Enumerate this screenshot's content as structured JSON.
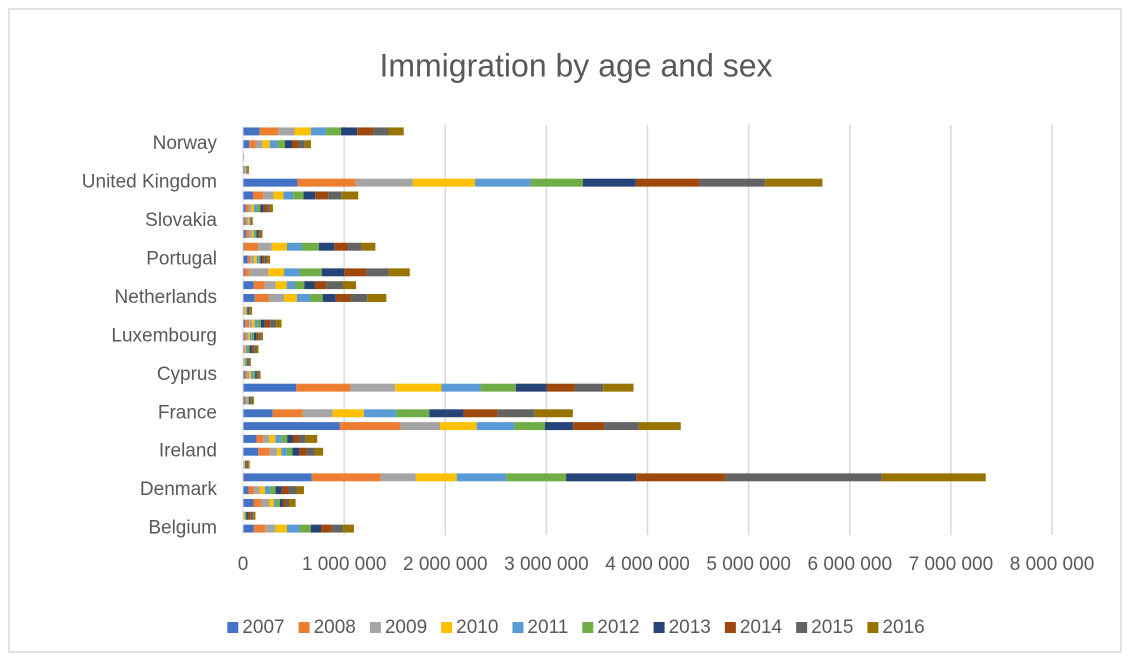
{
  "chart_data": {
    "type": "stacked-bar-horizontal",
    "title": "Immigration by age and sex",
    "categories": [
      "Belgium",
      null,
      null,
      "Denmark",
      null,
      null,
      "Ireland",
      null,
      null,
      "France",
      null,
      null,
      "Cyprus",
      null,
      null,
      "Luxembourg",
      null,
      null,
      "Netherlands",
      null,
      null,
      "Portugal",
      null,
      null,
      "Slovakia",
      null,
      null,
      "United Kingdom",
      null,
      null,
      "Norway",
      null
    ],
    "series": [
      {
        "name": "2007",
        "color": "#4472c4",
        "values": [
          107000,
          3000,
          104000,
          54000,
          680000,
          4000,
          151000,
          133000,
          958000,
          294000,
          15000,
          527000,
          19000,
          7000,
          9000,
          16000,
          23000,
          7000,
          116000,
          106000,
          15000,
          46000,
          10000,
          29000,
          17000,
          26000,
          99000,
          540000,
          12000,
          1000,
          61000,
          165000
        ]
      },
      {
        "name": "2008",
        "color": "#ed7d31",
        "values": [
          112000,
          3000,
          78000,
          57000,
          682000,
          4000,
          114000,
          67000,
          599000,
          297000,
          15000,
          535000,
          22000,
          4000,
          9000,
          18000,
          38000,
          9000,
          143000,
          110000,
          47000,
          30000,
          139000,
          31000,
          17000,
          30000,
          101000,
          575000,
          10000,
          1000,
          66000,
          184000
        ]
      },
      {
        "name": "2009",
        "color": "#a5a5a5",
        "values": [
          102000,
          4000,
          76000,
          52000,
          347000,
          4000,
          73000,
          59000,
          392000,
          297000,
          8000,
          443000,
          19000,
          4000,
          6000,
          16000,
          28000,
          7000,
          147000,
          108000,
          189000,
          33000,
          136000,
          30000,
          15000,
          27000,
          102000,
          565000,
          3000,
          1000,
          65000,
          160000
        ]
      },
      {
        "name": "2010",
        "color": "#ffc000",
        "values": [
          114000,
          4000,
          49000,
          53000,
          404000,
          3000,
          41000,
          60000,
          361000,
          307000,
          5000,
          458000,
          20000,
          5000,
          5000,
          17000,
          26000,
          8000,
          127000,
          108000,
          155000,
          27000,
          150000,
          15000,
          13000,
          26000,
          98000,
          615000,
          3000,
          1000,
          73000,
          162000
        ]
      },
      {
        "name": "2011",
        "color": "#5b9bd5",
        "values": [
          124000,
          3000,
          23000,
          52000,
          490000,
          3000,
          53000,
          60000,
          372000,
          320000,
          9000,
          385000,
          23000,
          10000,
          16000,
          20000,
          28000,
          5000,
          130000,
          82000,
          157000,
          20000,
          148000,
          14000,
          5000,
          30000,
          96000,
          550000,
          3000,
          1000,
          79000,
          149000
        ]
      },
      {
        "name": "2012",
        "color": "#70ad47",
        "values": [
          111000,
          14000,
          35000,
          54000,
          592000,
          3000,
          57000,
          58000,
          304000,
          327000,
          9000,
          350000,
          17000,
          13000,
          20000,
          21000,
          34000,
          8000,
          125000,
          92000,
          217000,
          15000,
          167000,
          15000,
          5000,
          31000,
          103000,
          515000,
          5000,
          1000,
          71000,
          150000
        ]
      },
      {
        "name": "2013",
        "color": "#264478",
        "values": [
          102000,
          18000,
          30000,
          60000,
          693000,
          4000,
          65000,
          57000,
          280000,
          338000,
          10000,
          307000,
          13000,
          8000,
          22000,
          21000,
          39000,
          11000,
          129000,
          101000,
          220000,
          18000,
          153000,
          14000,
          5000,
          32000,
          116000,
          525000,
          6000,
          1000,
          69000,
          160000
        ]
      },
      {
        "name": "2014",
        "color": "#9e480e",
        "values": [
          104000,
          27000,
          30000,
          68000,
          884000,
          11000,
          73000,
          59000,
          305000,
          340000,
          11000,
          277000,
          9000,
          10000,
          24000,
          22000,
          54000,
          8000,
          146000,
          116000,
          222000,
          20000,
          136000,
          14000,
          5000,
          31000,
          127000,
          630000,
          5000,
          1000,
          66000,
          156000
        ]
      },
      {
        "name": "2015",
        "color": "#636363",
        "values": [
          114000,
          26000,
          30000,
          79000,
          1543000,
          15000,
          80000,
          64000,
          343000,
          364000,
          12000,
          280000,
          15000,
          9000,
          22000,
          23000,
          58000,
          9000,
          166000,
          166000,
          218000,
          29000,
          132000,
          15000,
          7000,
          28000,
          135000,
          650000,
          5000,
          1000,
          60000,
          153000
        ]
      },
      {
        "name": "2016",
        "color": "#997300",
        "values": [
          107000,
          21000,
          65000,
          74000,
          1030000,
          15000,
          85000,
          117000,
          415000,
          378000,
          14000,
          300000,
          17000,
          8000,
          20000,
          23000,
          53000,
          18000,
          189000,
          129000,
          209000,
          30000,
          138000,
          16000,
          7000,
          35000,
          163000,
          565000,
          8000,
          1000,
          62000,
          150000
        ]
      }
    ],
    "xlim": [
      0,
      8000000
    ],
    "xticks": [
      0,
      {
        "value": 1000000,
        "label": "1 000 000"
      },
      {
        "value": 2000000,
        "label": "2 000 000"
      },
      {
        "value": 3000000,
        "label": "3 000 000"
      },
      {
        "value": 4000000,
        "label": "4 000 000"
      },
      {
        "value": 5000000,
        "label": "5 000 000"
      },
      {
        "value": 6000000,
        "label": "6 000 000"
      },
      {
        "value": 7000000,
        "label": "7 000 000"
      },
      {
        "value": 8000000,
        "label": "8 000 000"
      }
    ],
    "grid": true,
    "legend": "bottom"
  }
}
